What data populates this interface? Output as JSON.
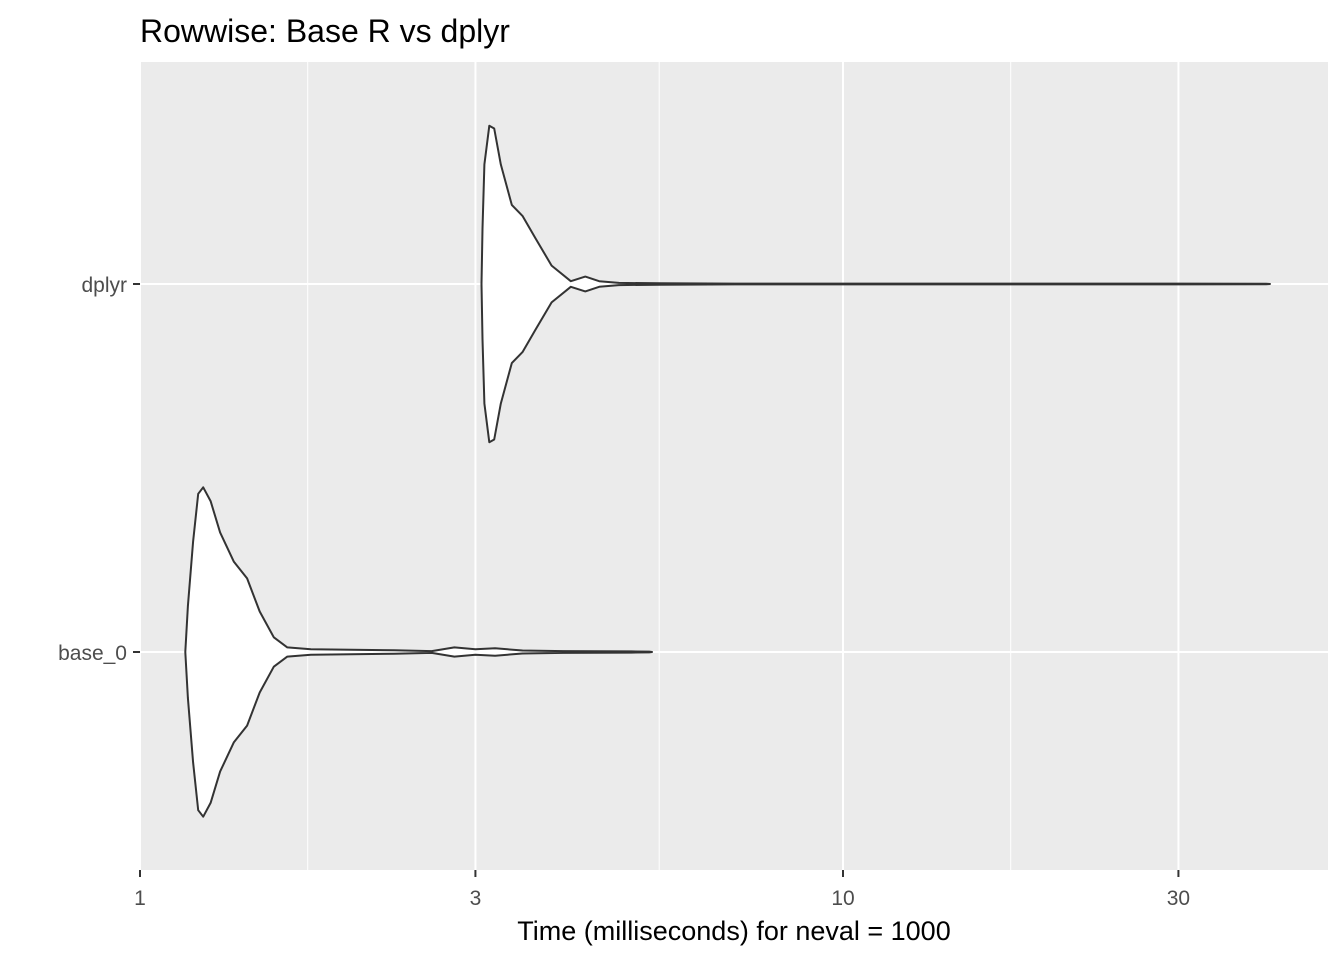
{
  "chart_data": {
    "type": "violin",
    "title": "Rowwise: Base R vs dplyr",
    "xlabel": "Time (milliseconds) for neval = 1000",
    "ylabel": "",
    "x_scale": "log10",
    "xlim": [
      1,
      45
    ],
    "x_ticks": [
      1,
      3,
      10,
      30
    ],
    "x_tick_labels": [
      "1",
      "3",
      "10",
      "30"
    ],
    "categories": [
      "base_0",
      "dplyr"
    ],
    "grid": true,
    "legend": "none",
    "colors": {
      "panel": "#EBEBEB",
      "grid": "#FFFFFF",
      "outline": "#333333",
      "fill": "#FFFFFF"
    },
    "series": [
      {
        "category": "base_0",
        "density": [
          [
            1.16,
            0.0
          ],
          [
            1.17,
            0.25
          ],
          [
            1.19,
            0.6
          ],
          [
            1.21,
            0.86
          ],
          [
            1.23,
            0.895
          ],
          [
            1.26,
            0.82
          ],
          [
            1.3,
            0.65
          ],
          [
            1.36,
            0.49
          ],
          [
            1.42,
            0.4
          ],
          [
            1.48,
            0.22
          ],
          [
            1.55,
            0.08
          ],
          [
            1.62,
            0.025
          ],
          [
            1.75,
            0.015
          ],
          [
            2.0,
            0.012
          ],
          [
            2.3,
            0.01
          ],
          [
            2.6,
            0.005
          ],
          [
            2.8,
            0.025
          ],
          [
            3.0,
            0.015
          ],
          [
            3.2,
            0.02
          ],
          [
            3.5,
            0.008
          ],
          [
            4.0,
            0.005
          ],
          [
            4.5,
            0.004
          ],
          [
            5.0,
            0.003
          ],
          [
            5.3,
            0.002
          ],
          [
            5.35,
            0.0
          ]
        ]
      },
      {
        "category": "dplyr",
        "density": [
          [
            3.06,
            0.0
          ],
          [
            3.07,
            0.3
          ],
          [
            3.09,
            0.65
          ],
          [
            3.14,
            0.86
          ],
          [
            3.19,
            0.845
          ],
          [
            3.26,
            0.65
          ],
          [
            3.38,
            0.43
          ],
          [
            3.5,
            0.37
          ],
          [
            3.65,
            0.25
          ],
          [
            3.85,
            0.1
          ],
          [
            4.1,
            0.015
          ],
          [
            4.3,
            0.04
          ],
          [
            4.5,
            0.015
          ],
          [
            4.8,
            0.006
          ],
          [
            5.5,
            0.004
          ],
          [
            7.0,
            0.002
          ],
          [
            15.0,
            0.002
          ],
          [
            30.0,
            0.002
          ],
          [
            40.0,
            0.001
          ],
          [
            40.5,
            0.0
          ]
        ]
      }
    ]
  }
}
